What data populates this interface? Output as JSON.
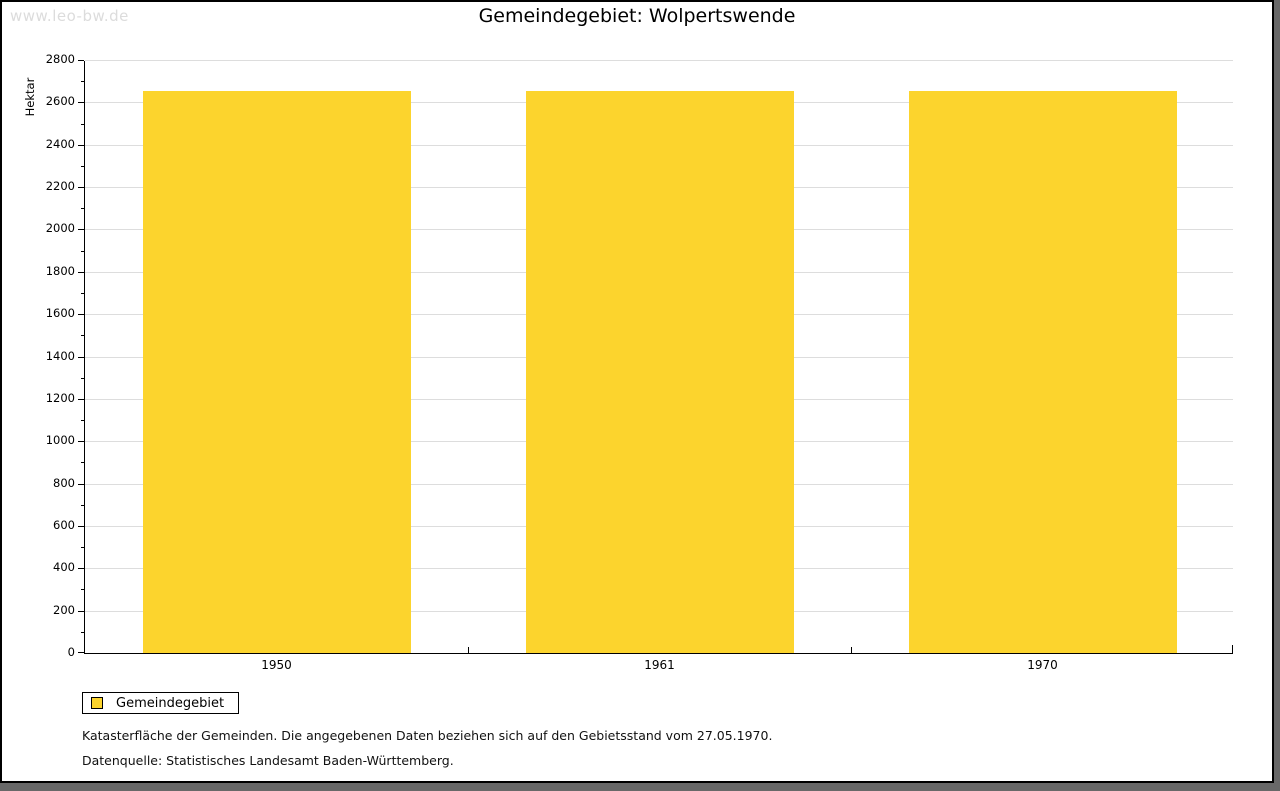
{
  "watermark": "www.leo-bw.de",
  "header": {
    "title": "Gemeindegebiet: Wolpertswende"
  },
  "chart_data": {
    "type": "bar",
    "title": "Gemeindegebiet: Wolpertswende",
    "categories": [
      "1950",
      "1961",
      "1970"
    ],
    "series": [
      {
        "name": "Gemeindegebiet",
        "values": [
          2654,
          2654,
          2654
        ],
        "color": "#FCD42D"
      }
    ],
    "xlabel": "",
    "ylabel": "Hektar",
    "ylim": [
      0,
      2800
    ],
    "yticks": [
      0,
      200,
      400,
      600,
      800,
      1000,
      1200,
      1400,
      1600,
      1800,
      2000,
      2200,
      2400,
      2600,
      2800
    ],
    "minor_ytick_step": 100,
    "grid": true,
    "legend_position": "bottom-left"
  },
  "legend": {
    "items": [
      {
        "label": "Gemeindegebiet",
        "color": "#FCD42D"
      }
    ]
  },
  "footnotes": {
    "line1": "Katasterfläche der Gemeinden. Die angegebenen Daten beziehen sich auf den Gebietsstand vom 27.05.1970.",
    "line2": "Datenquelle: Statistisches Landesamt Baden-Württemberg."
  },
  "colors": {
    "bar": "#FCD42D",
    "grid": "#DDDDDD",
    "axis": "#000000",
    "outer_frame": "#686868",
    "watermark": "#DCDCDC"
  }
}
